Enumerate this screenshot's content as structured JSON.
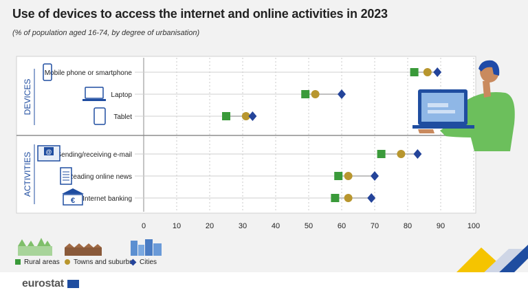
{
  "title": "Use of devices to access the internet and online activities in 2023",
  "subtitle": "(% of population aged 16-74, by degree of urbanisation)",
  "logo": "eurostat",
  "colors": {
    "rural": "#3a9a3a",
    "towns": "#b8962e",
    "cities": "#24449a",
    "icon": "#1f4da0"
  },
  "legend": [
    {
      "key": "rural",
      "label": "Rural areas",
      "shape": "square"
    },
    {
      "key": "towns",
      "label": "Towns and suburbs",
      "shape": "circle"
    },
    {
      "key": "cities",
      "label": "Cities",
      "shape": "diamond"
    }
  ],
  "chart_data": {
    "type": "scatter",
    "title": "Use of devices to access the internet and online activities in 2023",
    "subtitle": "(% of population aged 16-74, by degree of urbanisation)",
    "xlim": [
      0,
      100
    ],
    "xticks": [
      0,
      10,
      20,
      30,
      40,
      50,
      60,
      70,
      80,
      90,
      100
    ],
    "grid": "vertical dashed",
    "legend_position": "bottom-left",
    "groups": [
      {
        "label": "DEVICES",
        "categories": [
          "Mobile phone or smartphone",
          "Laptop",
          "Tablet"
        ],
        "icons": [
          "smartphone-icon",
          "laptop-icon",
          "tablet-icon"
        ]
      },
      {
        "label": "ACTIVITIES",
        "categories": [
          "Sending/receiving e-mail",
          "Reading online news",
          "Internet banking"
        ],
        "icons": [
          "email-icon",
          "newspaper-icon",
          "bank-icon"
        ]
      }
    ],
    "series": [
      {
        "name": "Rural areas",
        "key": "rural",
        "values": [
          82,
          49,
          25,
          72,
          59,
          58
        ]
      },
      {
        "name": "Towns and suburbs",
        "key": "towns",
        "values": [
          86,
          52,
          31,
          78,
          62,
          62
        ]
      },
      {
        "name": "Cities",
        "key": "cities",
        "values": [
          89,
          60,
          33,
          83,
          70,
          69
        ]
      }
    ]
  }
}
